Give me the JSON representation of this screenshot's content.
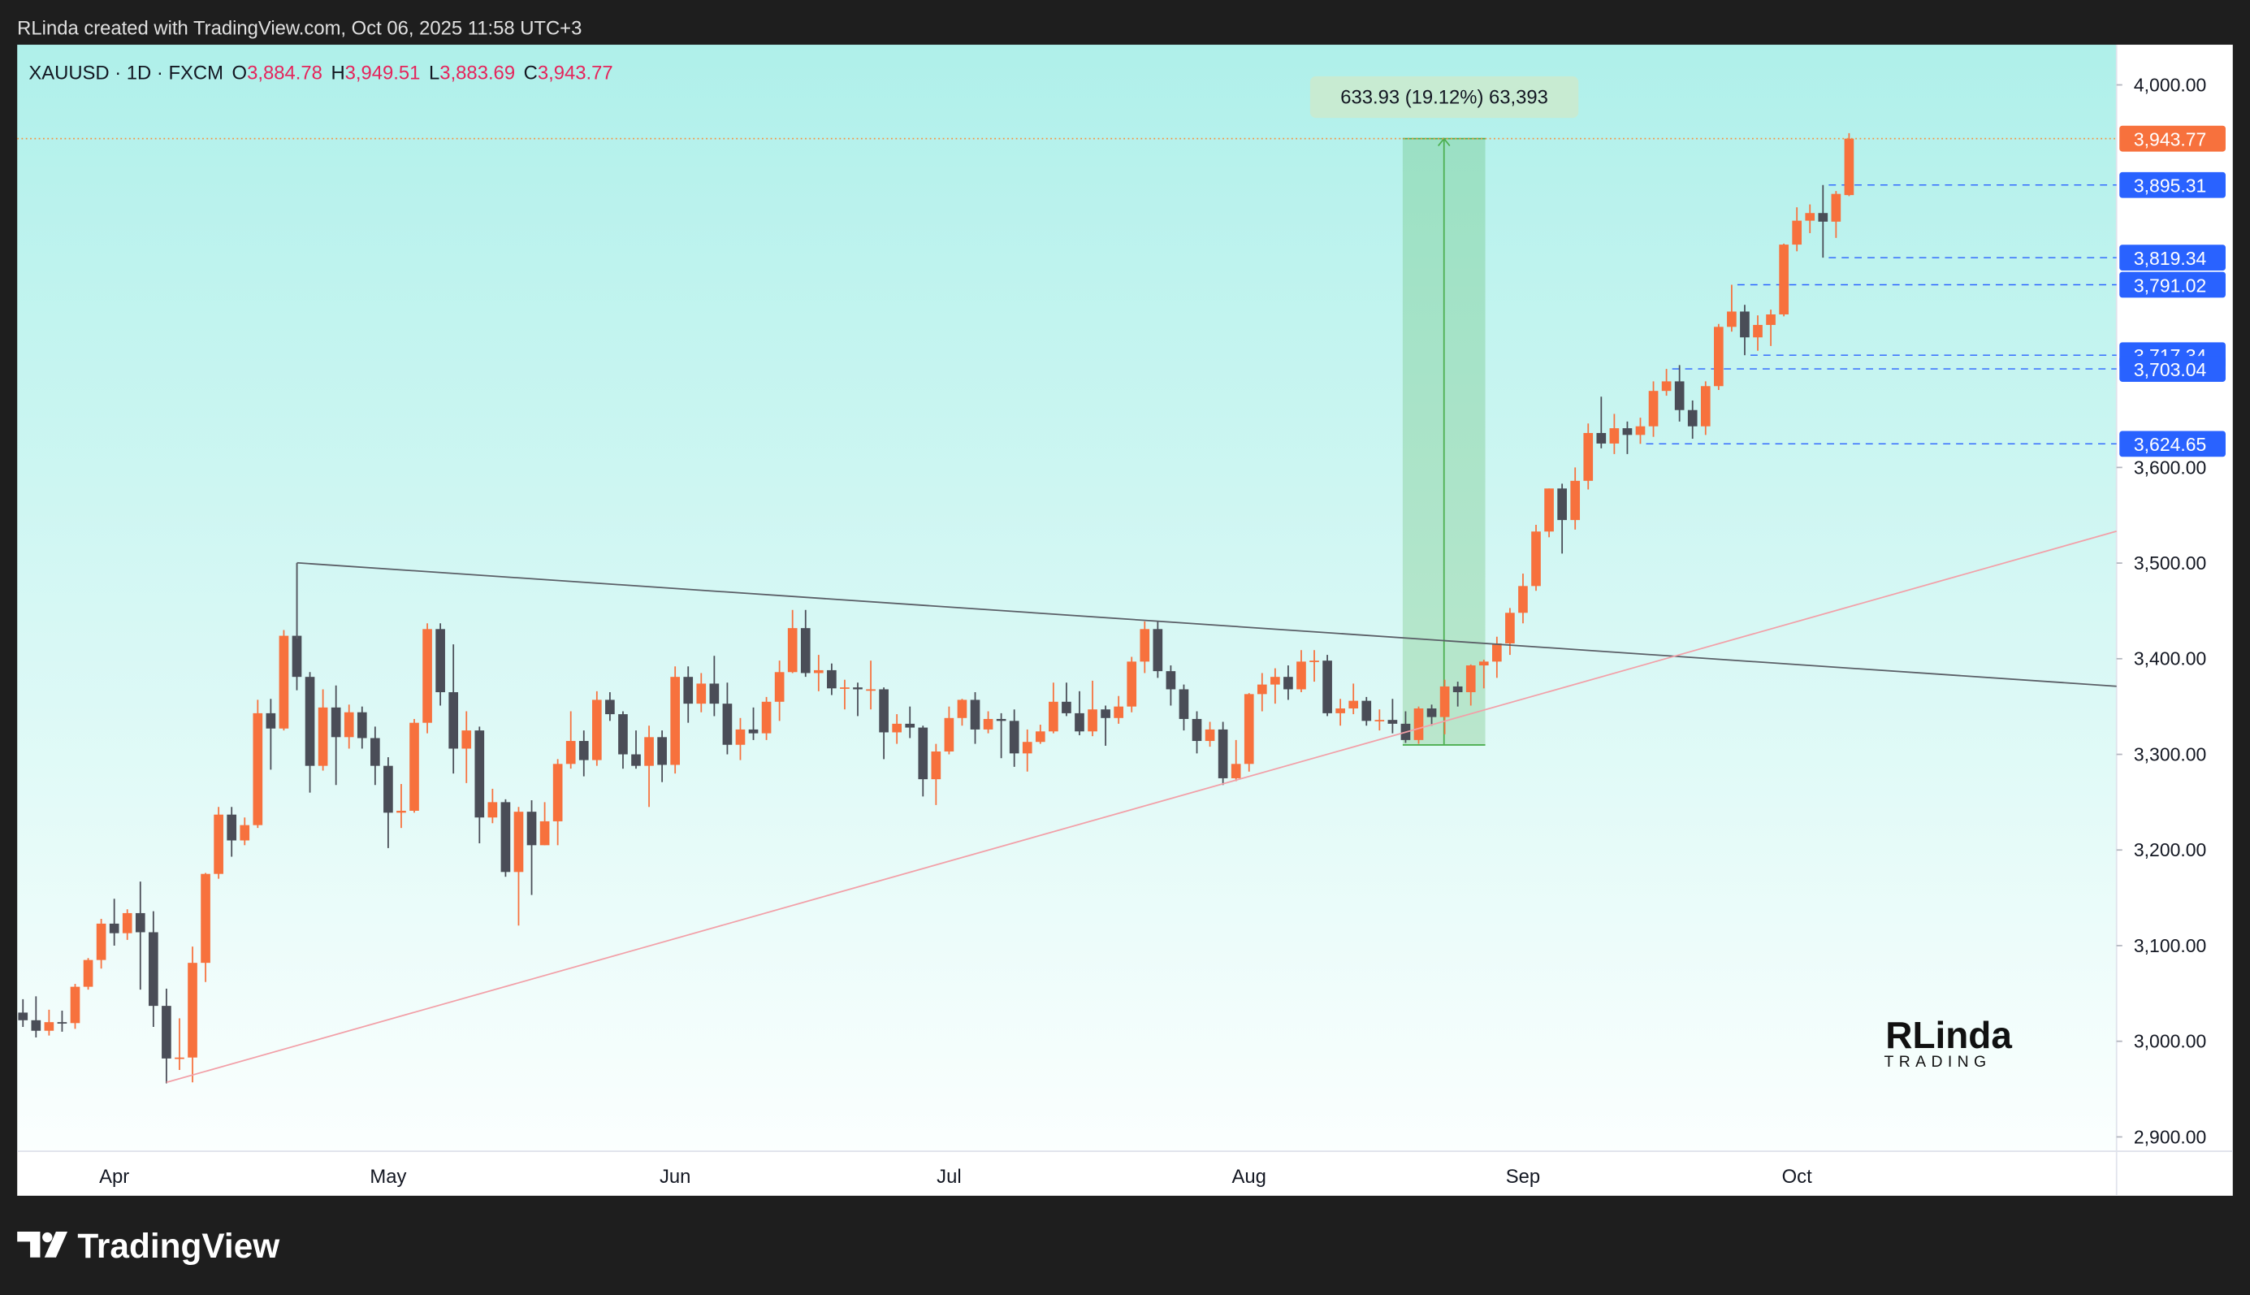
{
  "top_bar": {
    "text": "RLinda created with TradingView.com, Oct 06, 2025 11:58 UTC+3"
  },
  "chart_data": {
    "type": "candlestick",
    "symbol": "XAUUSD · 1D · FXCM",
    "ohlc_legend": [
      {
        "key": "O",
        "label": "3,884.78"
      },
      {
        "key": "H",
        "label": "3,949.51"
      },
      {
        "key": "L",
        "label": "3,883.69"
      },
      {
        "key": "C",
        "label": "3,943.77"
      }
    ],
    "up_color": "#f7713d",
    "down_color": "#4a4d57",
    "categories": [
      null,
      null,
      null,
      null,
      null,
      null,
      null,
      "Apr",
      null,
      null,
      null,
      null,
      null,
      null,
      null,
      null,
      null,
      null,
      null,
      null,
      null,
      null,
      null,
      null,
      null,
      null,
      null,
      null,
      "May",
      null,
      null,
      null,
      null,
      null,
      null,
      null,
      null,
      null,
      null,
      null,
      null,
      null,
      null,
      null,
      null,
      null,
      null,
      null,
      null,
      null,
      "Jun",
      null,
      null,
      null,
      null,
      null,
      null,
      null,
      null,
      null,
      null,
      null,
      null,
      null,
      null,
      null,
      null,
      null,
      null,
      null,
      null,
      "Jul",
      null,
      null,
      null,
      null,
      null,
      null,
      null,
      null,
      null,
      null,
      null,
      null,
      null,
      null,
      null,
      null,
      null,
      null,
      null,
      null,
      null,
      null,
      "Aug",
      null,
      null,
      null,
      null,
      null,
      null,
      null,
      null,
      null,
      null,
      null,
      null,
      null,
      null,
      null,
      null,
      null,
      null,
      null,
      null,
      "Sep",
      null,
      null,
      null,
      null,
      null,
      null,
      null,
      null,
      null,
      null,
      null,
      null,
      null,
      null,
      null,
      null,
      null,
      null,
      null,
      null,
      "Oct",
      null,
      null,
      null
    ],
    "ohlc": [
      [
        3030,
        3044,
        3015,
        3022
      ],
      [
        3022,
        3047,
        3004,
        3011
      ],
      [
        3011,
        3033,
        3006,
        3020
      ],
      [
        3020,
        3032,
        3010,
        3019
      ],
      [
        3019,
        3060,
        3013,
        3057
      ],
      [
        3057,
        3087,
        3054,
        3085
      ],
      [
        3085,
        3128,
        3076,
        3123
      ],
      [
        3123,
        3149,
        3100,
        3113
      ],
      [
        3113,
        3138,
        3106,
        3134
      ],
      [
        3134,
        3167,
        3054,
        3114
      ],
      [
        3114,
        3136,
        3015,
        3037
      ],
      [
        3037,
        3055,
        2956,
        2982
      ],
      [
        2982,
        3024,
        2970,
        2983
      ],
      [
        2983,
        3099,
        2957,
        3082
      ],
      [
        3082,
        3176,
        3062,
        3175
      ],
      [
        3175,
        3245,
        3170,
        3237
      ],
      [
        3237,
        3245,
        3193,
        3210
      ],
      [
        3210,
        3234,
        3205,
        3226
      ],
      [
        3226,
        3357,
        3223,
        3343
      ],
      [
        3343,
        3358,
        3284,
        3327
      ],
      [
        3327,
        3430,
        3325,
        3424
      ],
      [
        3424,
        3500,
        3367,
        3381
      ],
      [
        3381,
        3386,
        3260,
        3288
      ],
      [
        3288,
        3368,
        3283,
        3349
      ],
      [
        3349,
        3372,
        3268,
        3318
      ],
      [
        3318,
        3352,
        3306,
        3344
      ],
      [
        3344,
        3350,
        3306,
        3317
      ],
      [
        3317,
        3329,
        3268,
        3288
      ],
      [
        3288,
        3297,
        3202,
        3239
      ],
      [
        3239,
        3269,
        3223,
        3241
      ],
      [
        3241,
        3337,
        3239,
        3333
      ],
      [
        3333,
        3437,
        3322,
        3431
      ],
      [
        3431,
        3437,
        3351,
        3365
      ],
      [
        3365,
        3415,
        3280,
        3306
      ],
      [
        3306,
        3345,
        3270,
        3325
      ],
      [
        3325,
        3329,
        3207,
        3234
      ],
      [
        3234,
        3264,
        3228,
        3250
      ],
      [
        3250,
        3253,
        3172,
        3177
      ],
      [
        3177,
        3245,
        3121,
        3240
      ],
      [
        3240,
        3252,
        3153,
        3205
      ],
      [
        3205,
        3250,
        3205,
        3230
      ],
      [
        3230,
        3295,
        3205,
        3290
      ],
      [
        3290,
        3345,
        3285,
        3314
      ],
      [
        3314,
        3325,
        3277,
        3294
      ],
      [
        3294,
        3366,
        3288,
        3357
      ],
      [
        3357,
        3365,
        3335,
        3342
      ],
      [
        3342,
        3345,
        3285,
        3300
      ],
      [
        3300,
        3325,
        3285,
        3288
      ],
      [
        3288,
        3330,
        3245,
        3318
      ],
      [
        3318,
        3325,
        3271,
        3289
      ],
      [
        3289,
        3392,
        3280,
        3381
      ],
      [
        3381,
        3392,
        3333,
        3353
      ],
      [
        3353,
        3385,
        3344,
        3374
      ],
      [
        3374,
        3403,
        3340,
        3353
      ],
      [
        3353,
        3375,
        3300,
        3310
      ],
      [
        3310,
        3338,
        3294,
        3326
      ],
      [
        3326,
        3349,
        3315,
        3322
      ],
      [
        3322,
        3360,
        3315,
        3355
      ],
      [
        3355,
        3398,
        3335,
        3386
      ],
      [
        3386,
        3451,
        3385,
        3432
      ],
      [
        3432,
        3451,
        3381,
        3385
      ],
      [
        3385,
        3404,
        3366,
        3388
      ],
      [
        3388,
        3395,
        3362,
        3369
      ],
      [
        3369,
        3378,
        3347,
        3370
      ],
      [
        3370,
        3375,
        3340,
        3368
      ],
      [
        3368,
        3398,
        3347,
        3368
      ],
      [
        3368,
        3370,
        3295,
        3323
      ],
      [
        3323,
        3342,
        3311,
        3332
      ],
      [
        3332,
        3350,
        3317,
        3328
      ],
      [
        3328,
        3330,
        3256,
        3274
      ],
      [
        3274,
        3311,
        3247,
        3303
      ],
      [
        3303,
        3350,
        3300,
        3338
      ],
      [
        3338,
        3358,
        3330,
        3357
      ],
      [
        3357,
        3365,
        3311,
        3326
      ],
      [
        3326,
        3345,
        3322,
        3337
      ],
      [
        3337,
        3343,
        3296,
        3335
      ],
      [
        3335,
        3347,
        3287,
        3301
      ],
      [
        3301,
        3326,
        3282,
        3313
      ],
      [
        3313,
        3331,
        3311,
        3324
      ],
      [
        3324,
        3375,
        3322,
        3355
      ],
      [
        3355,
        3375,
        3340,
        3343
      ],
      [
        3343,
        3366,
        3320,
        3324
      ],
      [
        3324,
        3377,
        3319,
        3347
      ],
      [
        3347,
        3351,
        3309,
        3338
      ],
      [
        3338,
        3361,
        3332,
        3350
      ],
      [
        3350,
        3402,
        3344,
        3397
      ],
      [
        3397,
        3439,
        3385,
        3431
      ],
      [
        3431,
        3439,
        3380,
        3387
      ],
      [
        3387,
        3393,
        3351,
        3368
      ],
      [
        3368,
        3373,
        3325,
        3337
      ],
      [
        3337,
        3345,
        3301,
        3314
      ],
      [
        3314,
        3334,
        3308,
        3326
      ],
      [
        3326,
        3334,
        3268,
        3275
      ],
      [
        3275,
        3315,
        3272,
        3290
      ],
      [
        3290,
        3364,
        3282,
        3363
      ],
      [
        3363,
        3385,
        3345,
        3373
      ],
      [
        3373,
        3390,
        3353,
        3381
      ],
      [
        3381,
        3393,
        3357,
        3368
      ],
      [
        3368,
        3409,
        3365,
        3397
      ],
      [
        3397,
        3409,
        3376,
        3398
      ],
      [
        3398,
        3404,
        3340,
        3343
      ],
      [
        3343,
        3358,
        3330,
        3348
      ],
      [
        3348,
        3374,
        3342,
        3356
      ],
      [
        3356,
        3360,
        3330,
        3335
      ],
      [
        3335,
        3347,
        3325,
        3336
      ],
      [
        3336,
        3358,
        3322,
        3332
      ],
      [
        3332,
        3345,
        3312,
        3315
      ],
      [
        3315,
        3350,
        3311,
        3348
      ],
      [
        3348,
        3352,
        3330,
        3339
      ],
      [
        3339,
        3378,
        3321,
        3371
      ],
      [
        3371,
        3376,
        3350,
        3365
      ],
      [
        3365,
        3394,
        3351,
        3393
      ],
      [
        3393,
        3399,
        3369,
        3397
      ],
      [
        3397,
        3423,
        3380,
        3416
      ],
      [
        3416,
        3453,
        3404,
        3448
      ],
      [
        3448,
        3489,
        3437,
        3476
      ],
      [
        3476,
        3540,
        3471,
        3533
      ],
      [
        3533,
        3578,
        3527,
        3578
      ],
      [
        3578,
        3583,
        3510,
        3545
      ],
      [
        3545,
        3600,
        3535,
        3586
      ],
      [
        3586,
        3646,
        3577,
        3636
      ],
      [
        3636,
        3674,
        3620,
        3625
      ],
      [
        3625,
        3656,
        3614,
        3641
      ],
      [
        3641,
        3648,
        3614,
        3634
      ],
      [
        3634,
        3652,
        3624.65,
        3643
      ],
      [
        3643,
        3690,
        3632,
        3680
      ],
      [
        3680,
        3703.04,
        3675,
        3690
      ],
      [
        3690,
        3707,
        3648,
        3660
      ],
      [
        3660,
        3670,
        3630,
        3643
      ],
      [
        3643,
        3690,
        3634,
        3685
      ],
      [
        3685,
        3750,
        3681,
        3747
      ],
      [
        3747,
        3791.02,
        3742,
        3763
      ],
      [
        3763,
        3770,
        3717.34,
        3736
      ],
      [
        3736,
        3759,
        3722,
        3749
      ],
      [
        3749,
        3765,
        3727,
        3760
      ],
      [
        3760,
        3834,
        3758,
        3833
      ],
      [
        3833,
        3872,
        3826,
        3858
      ],
      [
        3858,
        3875,
        3845,
        3866
      ],
      [
        3866,
        3895.31,
        3819.34,
        3857
      ],
      [
        3857,
        3889,
        3840,
        3886
      ],
      [
        3884.78,
        3949.51,
        3883.69,
        3943.77
      ]
    ],
    "ylim": [
      2885,
      4042
    ],
    "yticks": [
      {
        "value": 4000,
        "label": "4,000.00"
      },
      {
        "value": 3600,
        "label": "3,600.00"
      },
      {
        "value": 3500,
        "label": "3,500.00"
      },
      {
        "value": 3400,
        "label": "3,400.00"
      },
      {
        "value": 3300,
        "label": "3,300.00"
      },
      {
        "value": 3200,
        "label": "3,200.00"
      },
      {
        "value": 3100,
        "label": "3,100.00"
      },
      {
        "value": 3000,
        "label": "3,000.00"
      },
      {
        "value": 2900,
        "label": "2,900.00"
      }
    ],
    "last_price_label": "3,943.77",
    "levels": [
      {
        "value": 3895.31,
        "label": "3,895.31"
      },
      {
        "value": 3819.34,
        "label": "3,819.34"
      },
      {
        "value": 3791.02,
        "label": "3,791.02"
      },
      {
        "value": 3717.34,
        "label": "3,717.34"
      },
      {
        "value": 3703.04,
        "label": "3,703.04"
      },
      {
        "value": 3624.65,
        "label": "3,624.65"
      }
    ],
    "level_color": "#2962ff",
    "measure": {
      "label": "633.93 (19.12%) 63,393",
      "from": 3309.84,
      "to": 3943.77
    },
    "watermark": {
      "name": "RLinda",
      "tag": "TRADING"
    }
  },
  "footer": {
    "brand": "TradingView"
  }
}
